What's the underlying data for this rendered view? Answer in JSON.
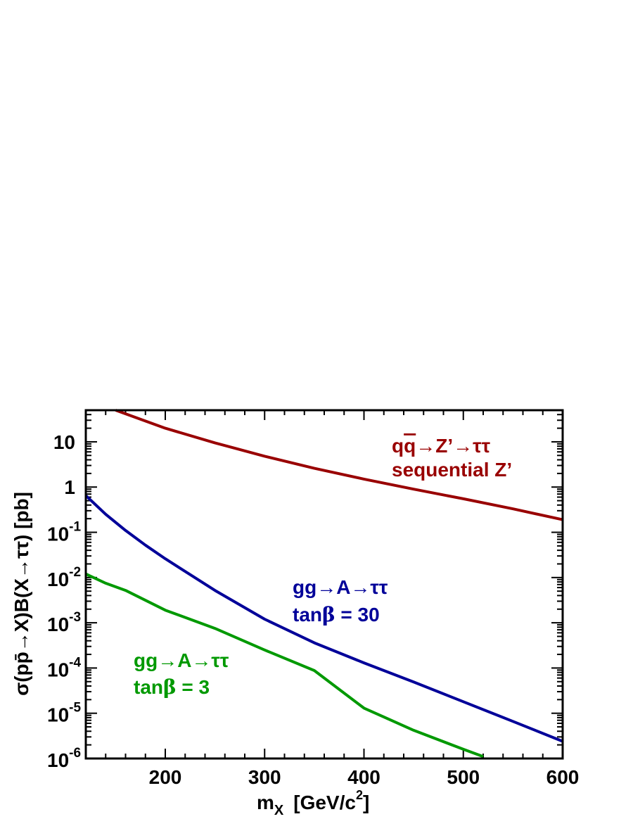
{
  "chart_data": {
    "type": "line",
    "xlabel": "m",
    "xlabel_sub": "X",
    "xlabel_unit": "[GeV/c",
    "xlabel_sup": "2",
    "xlabel_close": "]",
    "ylabel": "σ(pp̄→X)B(X→ττ)  [pb]",
    "xlim": [
      120,
      600
    ],
    "ylim": [
      1e-06,
      50
    ],
    "yscale": "log",
    "x_ticks": [
      200,
      300,
      400,
      500,
      600
    ],
    "x_tick_labels": [
      "200",
      "300",
      "400",
      "500",
      "600"
    ],
    "y_ticks": [
      {
        "value": 10,
        "mantissa": "10",
        "exp": ""
      },
      {
        "value": 1,
        "mantissa": "1",
        "exp": ""
      },
      {
        "value": 0.1,
        "mantissa": "10",
        "exp": "-1"
      },
      {
        "value": 0.01,
        "mantissa": "10",
        "exp": "-2"
      },
      {
        "value": 0.001,
        "mantissa": "10",
        "exp": "-3"
      },
      {
        "value": 0.0001,
        "mantissa": "10",
        "exp": "-4"
      },
      {
        "value": 1e-05,
        "mantissa": "10",
        "exp": "-5"
      },
      {
        "value": 1e-06,
        "mantissa": "10",
        "exp": "-6"
      }
    ],
    "series": [
      {
        "color": "#990000",
        "x": [
          150,
          200,
          250,
          300,
          350,
          400,
          450,
          500,
          550,
          600
        ],
        "y": [
          50,
          20,
          9.5,
          4.8,
          2.6,
          1.5,
          0.9,
          0.55,
          0.33,
          0.19
        ]
      },
      {
        "color": "#000099",
        "x": [
          120,
          140,
          160,
          180,
          200,
          250,
          300,
          350,
          400,
          450,
          500,
          550,
          600
        ],
        "y": [
          0.65,
          0.25,
          0.11,
          0.052,
          0.026,
          0.0052,
          0.0012,
          0.00036,
          0.00013,
          4.9e-05,
          1.8e-05,
          6.6e-06,
          2.4e-06
        ]
      },
      {
        "color": "#009900",
        "x": [
          120,
          140,
          160,
          200,
          250,
          300,
          350,
          400,
          450,
          500,
          520
        ],
        "y": [
          0.012,
          0.0075,
          0.0052,
          0.0019,
          0.00075,
          0.00025,
          8.8e-05,
          1.3e-05,
          4.2e-06,
          1.6e-06,
          1.1e-06
        ]
      }
    ],
    "annotations": [
      {
        "id": "zprime",
        "color": "#990000",
        "line1_q": "q",
        "line1_qbar": "q",
        "line1_rest": "→Z’→ττ",
        "line2": "sequential Z’"
      },
      {
        "id": "a30",
        "color": "#000099",
        "line1": "gg→A→ττ",
        "line2_tan": "tan",
        "line2_beta": "β",
        "line2_rest": " = 30"
      },
      {
        "id": "a3",
        "color": "#009900",
        "line1": "gg→A→ττ",
        "line2_tan": "tan",
        "line2_beta": "β",
        "line2_rest": " = 3"
      }
    ]
  }
}
